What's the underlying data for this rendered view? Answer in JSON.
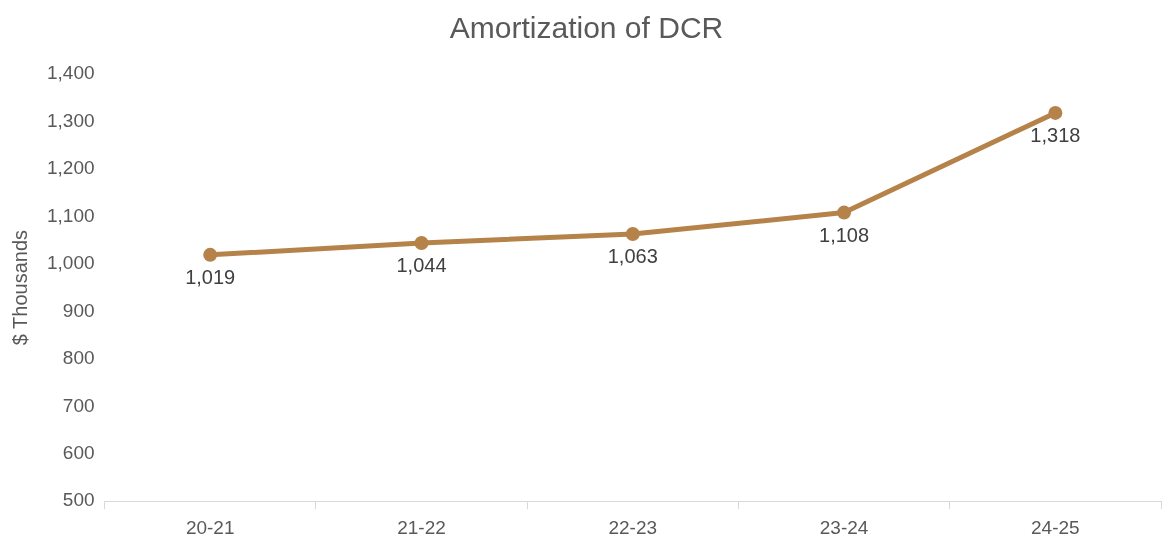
{
  "chart_data": {
    "type": "line",
    "title": "Amortization of DCR",
    "ylabel": "$ Thousands",
    "categories": [
      "20-21",
      "21-22",
      "22-23",
      "23-24",
      "24-25"
    ],
    "series": [
      {
        "color": "#b5834a",
        "values": [
          1019,
          1044,
          1063,
          1108,
          1318
        ],
        "value_labels": [
          "1,019",
          "1,044",
          "1,063",
          "1,108",
          "1,318"
        ]
      }
    ],
    "ylim": [
      500,
      1400
    ],
    "yticks": [
      {
        "value": 500,
        "label": "500"
      },
      {
        "value": 600,
        "label": "600"
      },
      {
        "value": 700,
        "label": "700"
      },
      {
        "value": 800,
        "label": "800"
      },
      {
        "value": 900,
        "label": "900"
      },
      {
        "value": 1000,
        "label": "1,000"
      },
      {
        "value": 1100,
        "label": "1,100"
      },
      {
        "value": 1200,
        "label": "1,200"
      },
      {
        "value": 1300,
        "label": "1,300"
      },
      {
        "value": 1400,
        "label": "1,400"
      }
    ],
    "grid": false,
    "legend": false,
    "marker": "circle",
    "line_style": "solid"
  }
}
